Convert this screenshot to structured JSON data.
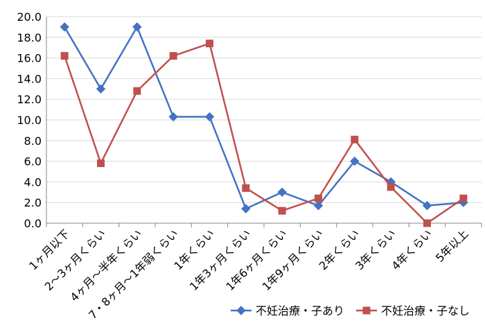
{
  "chart_data": {
    "type": "line",
    "title": "",
    "xlabel": "",
    "ylabel": "",
    "ylim": [
      0,
      20
    ],
    "y_ticks": [
      "0.0",
      "2.0",
      "4.0",
      "6.0",
      "8.0",
      "10.0",
      "12.0",
      "14.0",
      "16.0",
      "18.0",
      "20.0"
    ],
    "grid": true,
    "legend_position": "bottom-right",
    "categories": [
      "1ヶ月以下",
      "2～3ヶ月くらい",
      "4ヶ月～半年くらい",
      "7・8ヶ月～1年弱くらい",
      "1年くらい",
      "1年3ヶ月くらい",
      "1年6ヶ月くらい",
      "1年9ヶ月くらい",
      "2年くらい",
      "3年くらい",
      "4年くらい",
      "5年以上"
    ],
    "series": [
      {
        "name": "不妊治療・子あり",
        "color": "#4472c4",
        "marker": "diamond",
        "values": [
          19.0,
          13.0,
          19.0,
          10.3,
          10.3,
          1.4,
          3.0,
          1.7,
          6.0,
          4.0,
          1.7,
          2.0
        ]
      },
      {
        "name": "不妊治療・子なし",
        "color": "#c0504d",
        "marker": "square",
        "values": [
          16.2,
          5.8,
          12.8,
          16.2,
          17.4,
          3.4,
          1.2,
          2.4,
          8.1,
          3.5,
          0.0,
          2.4
        ]
      }
    ]
  }
}
